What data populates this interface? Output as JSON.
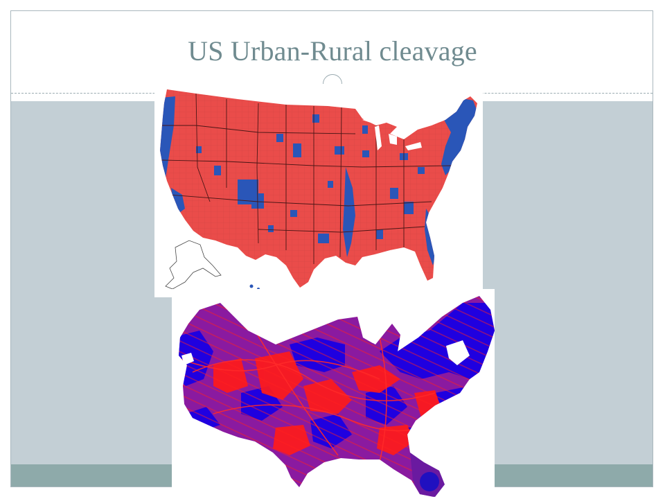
{
  "slide": {
    "title": "US Urban-Rural cleavage"
  },
  "maps": [
    {
      "kind": "county-choropleth",
      "colors": {
        "majority_a": "#ea4c4a",
        "majority_b": "#2a56b8",
        "border": "#6b2222"
      }
    },
    {
      "kind": "population-cartogram",
      "colors": {
        "red": "#ff1a1a",
        "blue": "#1f00e0",
        "purple": "#8a1aa0"
      }
    }
  ],
  "theme": {
    "title_color": "#708b90",
    "panel_color": "#c3cfd5",
    "footer_color": "#8eaaaa"
  }
}
